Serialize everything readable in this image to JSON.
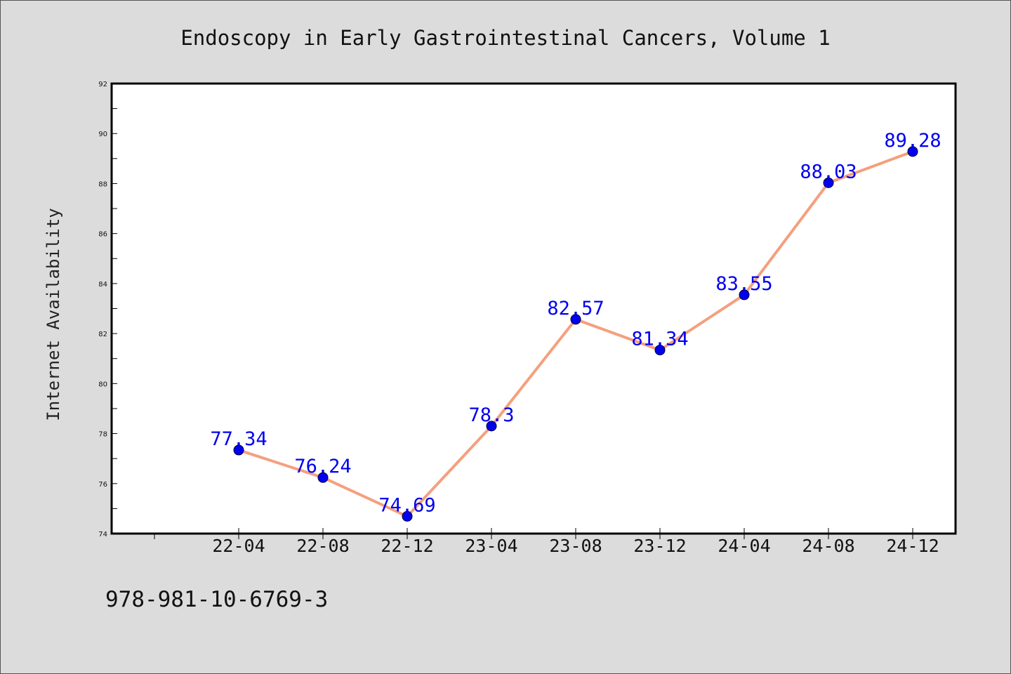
{
  "chart_data": {
    "type": "line",
    "title": "Endoscopy in Early Gastrointestinal Cancers, Volume 1",
    "xlabel": "",
    "ylabel": "Internet Availability",
    "categories": [
      "22-04",
      "22-08",
      "22-12",
      "23-04",
      "23-08",
      "23-12",
      "24-04",
      "24-08",
      "24-12"
    ],
    "series": [
      {
        "values": [
          77.34,
          76.24,
          74.69,
          78.3,
          82.57,
          81.34,
          83.55,
          88.03,
          89.28
        ],
        "data_labels": [
          "77.34",
          "76.24",
          "74.69",
          "78.3",
          "82.57",
          "81.34",
          "83.55",
          "88.03",
          "89.28"
        ]
      }
    ],
    "ylim": [
      74,
      92
    ],
    "yticks": [
      74,
      76,
      78,
      80,
      82,
      84,
      86,
      88,
      90,
      92
    ],
    "grid": false,
    "legend": "none",
    "colors": {
      "line": "#f4a07e",
      "marker": "#0000ee",
      "label": "#0000ee",
      "plot_background": "#ffffff",
      "page_background": "#dcdcdc"
    }
  },
  "footer": {
    "isbn": "978-981-10-6769-3"
  }
}
